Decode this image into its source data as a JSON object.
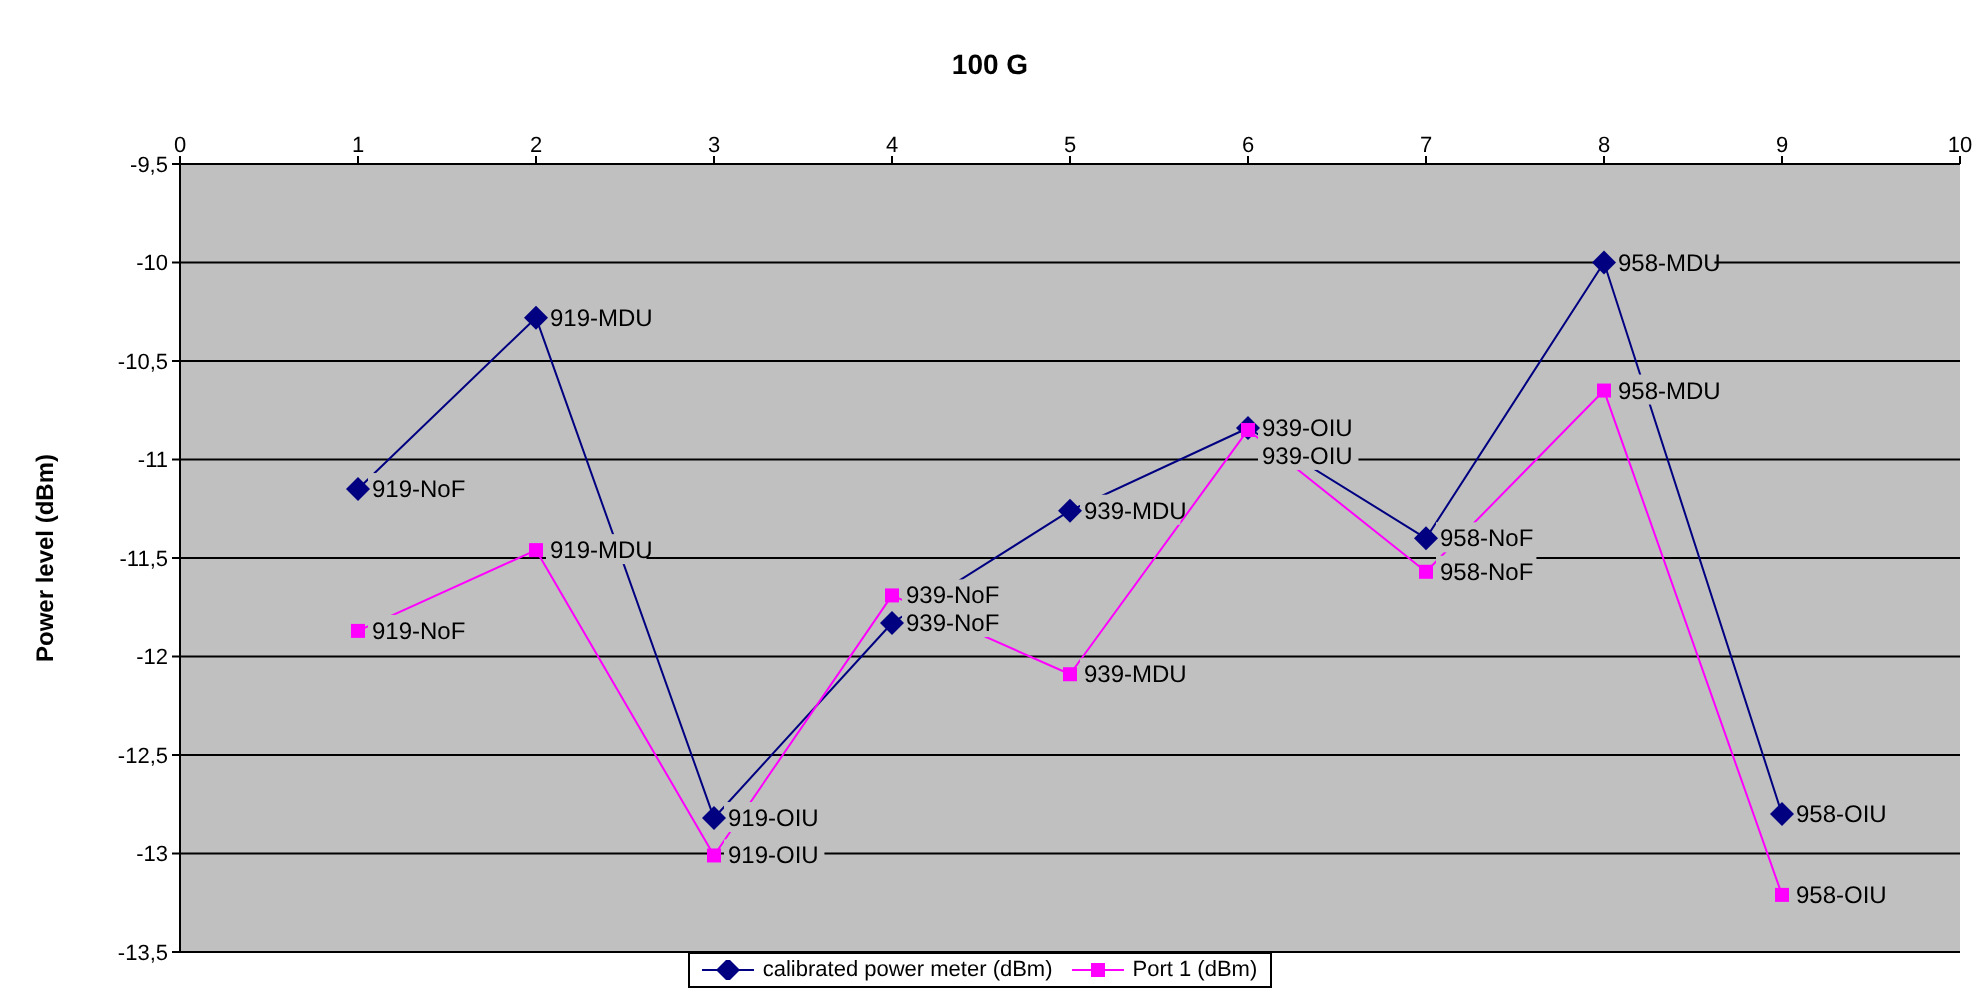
{
  "chart_data": {
    "type": "line",
    "title": "100 G",
    "ylabel": "Power level (dBm)",
    "x": [
      1,
      2,
      3,
      4,
      5,
      6,
      7,
      8,
      9
    ],
    "series": [
      {
        "name": "calibrated power meter (dBm)",
        "color": "#000080",
        "marker": "diamond",
        "values": [
          -11.15,
          -10.28,
          -12.82,
          -11.83,
          -11.26,
          -10.84,
          -11.4,
          -10.0,
          -12.8
        ]
      },
      {
        "name": "Port 1 (dBm)",
        "color": "#ff00ff",
        "marker": "square",
        "values": [
          -11.87,
          -11.46,
          -13.01,
          -11.69,
          -12.09,
          -10.85,
          -11.57,
          -10.65,
          -13.21
        ]
      }
    ],
    "xlim": [
      0,
      10
    ],
    "xticks": [
      0,
      1,
      2,
      3,
      4,
      5,
      6,
      7,
      8,
      9,
      10
    ],
    "ylim": [
      -13.5,
      -9.5
    ],
    "yticks": [
      {
        "value": -9.5,
        "label": "-9,5"
      },
      -10,
      {
        "value": -10.5,
        "label": "-10,5"
      },
      -11,
      {
        "value": -11.5,
        "label": "-11,5"
      },
      -12,
      {
        "value": -12.5,
        "label": "-12,5"
      },
      -13,
      {
        "value": -13.5,
        "label": "-13,5"
      }
    ],
    "grid": "y",
    "legend": "bottom",
    "line_style": "solid",
    "annotations": [
      {
        "text": "919-NoF",
        "x": 1,
        "y": -11.15
      },
      {
        "text": "919-MDU",
        "x": 2,
        "y": -10.28
      },
      {
        "text": "919-OIU",
        "x": 3,
        "y": -12.82
      },
      {
        "text": "939-NoF",
        "x": 4,
        "y": -11.83
      },
      {
        "text": "939-MDU",
        "x": 5,
        "y": -11.26
      },
      {
        "text": "939-OIU",
        "x": 6,
        "y": -10.84
      },
      {
        "text": "958-NoF",
        "x": 7,
        "y": -11.4
      },
      {
        "text": "958-MDU",
        "x": 8,
        "y": -10.0
      },
      {
        "text": "958-OIU",
        "x": 9,
        "y": -12.8
      },
      {
        "text": "919-NoF",
        "x": 1,
        "y": -11.87
      },
      {
        "text": "919-MDU",
        "x": 2,
        "y": -11.46
      },
      {
        "text": "919-OIU",
        "x": 3,
        "y": -13.01
      },
      {
        "text": "939-NoF",
        "x": 4,
        "y": -11.69
      },
      {
        "text": "939-MDU",
        "x": 5,
        "y": -12.09
      },
      {
        "text": "939-OIU",
        "x": 6,
        "y": -10.85
      },
      {
        "text": "958-NoF",
        "x": 7,
        "y": -11.57
      },
      {
        "text": "958-MDU",
        "x": 8,
        "y": -10.65
      },
      {
        "text": "958-OIU",
        "x": 9,
        "y": -13.21
      }
    ]
  }
}
